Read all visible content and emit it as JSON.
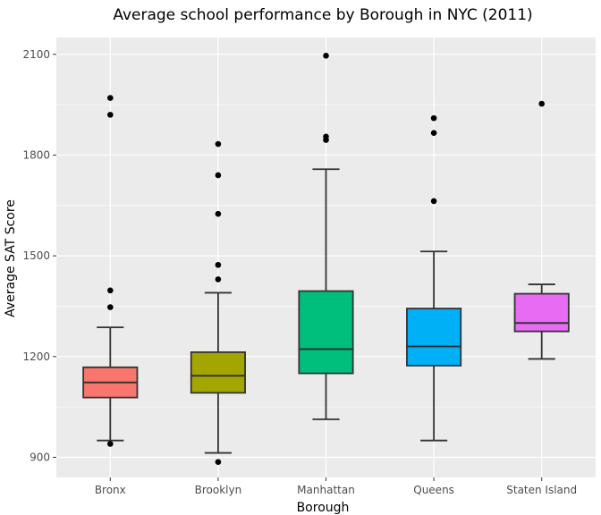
{
  "chart_data": {
    "type": "box",
    "title": "Average school performance by Borough in NYC (2011)",
    "xlabel": "Borough",
    "ylabel": "Average SAT Score",
    "y_ticks": [
      900,
      1200,
      1500,
      1800,
      2100
    ],
    "ylim": [
      840,
      2150
    ],
    "grid": true,
    "legend": "none",
    "panel_background": "#ebebeb",
    "gridline_color": "#ffffff",
    "categories": [
      "Bronx",
      "Brooklyn",
      "Manhattan",
      "Queens",
      "Staten Island"
    ],
    "boxes": [
      {
        "name": "Bronx",
        "color": "#f8766d",
        "whisker_low": 950,
        "q1": 1078,
        "median": 1123,
        "q3": 1168,
        "whisker_high": 1287,
        "outliers": [
          1970,
          1920,
          1397,
          1347,
          940
        ]
      },
      {
        "name": "Brooklyn",
        "color": "#a3a500",
        "whisker_low": 913,
        "q1": 1092,
        "median": 1143,
        "q3": 1213,
        "whisker_high": 1390,
        "outliers": [
          1833,
          1740,
          1625,
          1473,
          1430,
          886
        ]
      },
      {
        "name": "Manhattan",
        "color": "#00bf7d",
        "whisker_low": 1013,
        "q1": 1150,
        "median": 1222,
        "q3": 1395,
        "whisker_high": 1758,
        "outliers": [
          2096,
          1855,
          1845
        ]
      },
      {
        "name": "Queens",
        "color": "#00b0f6",
        "whisker_low": 950,
        "q1": 1173,
        "median": 1230,
        "q3": 1343,
        "whisker_high": 1513,
        "outliers": [
          1910,
          1866,
          1663
        ]
      },
      {
        "name": "Staten Island",
        "color": "#e76bf3",
        "whisker_low": 1193,
        "q1": 1275,
        "median": 1300,
        "q3": 1387,
        "whisker_high": 1415,
        "outliers": [
          1953
        ]
      }
    ]
  }
}
